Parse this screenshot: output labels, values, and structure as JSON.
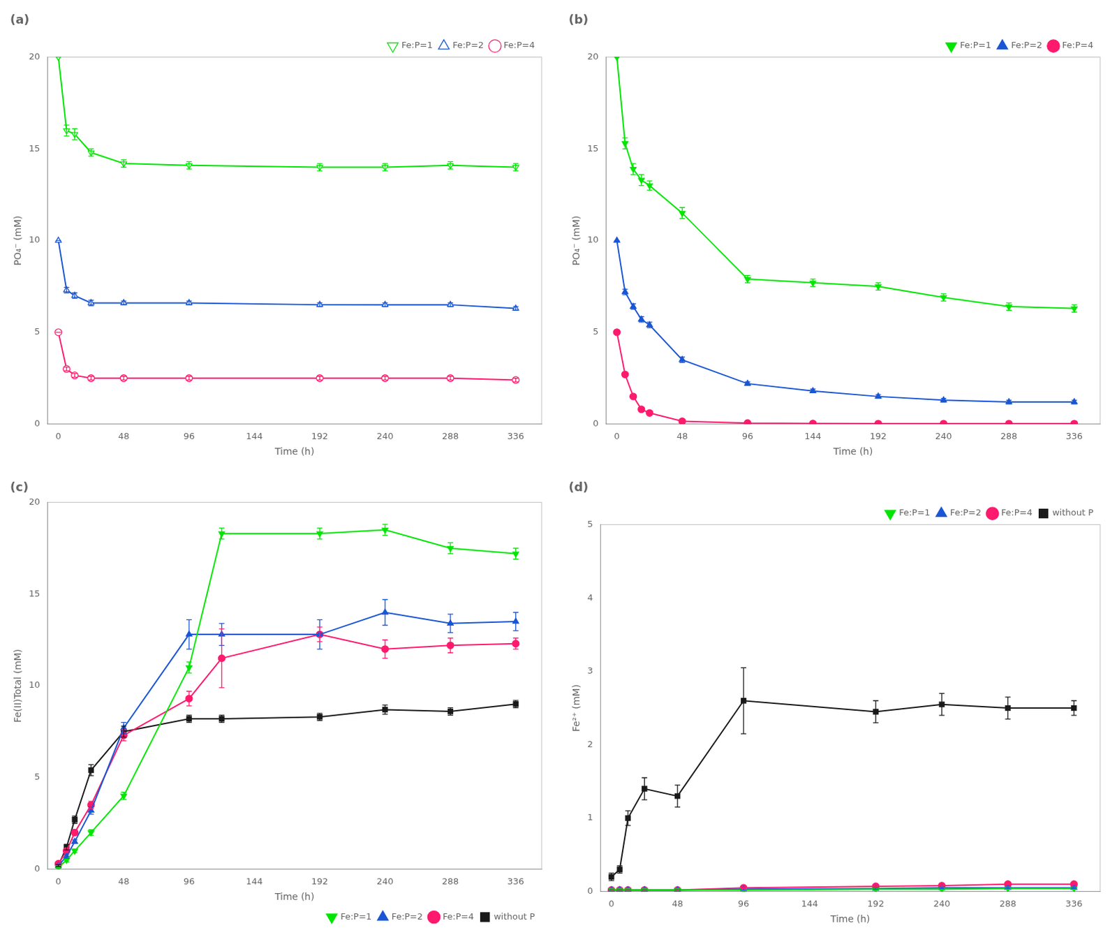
{
  "chart_data": [
    {
      "type": "line",
      "title": "(a)",
      "xlabel": "Time (h)",
      "ylabel": "PO₄⁻ (mM)",
      "x": [
        0,
        6,
        12,
        24,
        48,
        96,
        192,
        240,
        288,
        336
      ],
      "xlim": [
        -8,
        355
      ],
      "xticks": [
        0,
        48,
        96,
        144,
        192,
        240,
        288,
        336
      ],
      "ylim": [
        0,
        20
      ],
      "yticks": [
        0,
        5,
        10,
        15,
        20
      ],
      "grid": false,
      "legend": "upper right",
      "series": [
        {
          "name": "Fe:P=1",
          "color": "#00e600",
          "marker": "triangle-down-open",
          "values": [
            20.0,
            16.0,
            15.8,
            14.8,
            14.2,
            14.1,
            14.0,
            14.0,
            14.1,
            14.0
          ],
          "errors": [
            0.0,
            0.3,
            0.3,
            0.2,
            0.2,
            0.2,
            0.2,
            0.2,
            0.2,
            0.2
          ]
        },
        {
          "name": "Fe:P=2",
          "color": "#1a56d4",
          "marker": "triangle-up-open",
          "values": [
            10.0,
            7.3,
            7.0,
            6.6,
            6.6,
            6.6,
            6.5,
            6.5,
            6.5,
            6.3
          ],
          "errors": [
            0.0,
            0.15,
            0.15,
            0.15,
            0.1,
            0.1,
            0.1,
            0.1,
            0.1,
            0.1
          ]
        },
        {
          "name": "Fe:P=4",
          "color": "#ff1a6e",
          "marker": "circle-open",
          "values": [
            5.0,
            3.0,
            2.65,
            2.5,
            2.5,
            2.5,
            2.5,
            2.5,
            2.5,
            2.4
          ],
          "errors": [
            0.0,
            0.1,
            0.1,
            0.1,
            0.1,
            0.1,
            0.1,
            0.1,
            0.1,
            0.1
          ]
        }
      ]
    },
    {
      "type": "line",
      "title": "(b)",
      "xlabel": "Time (h)",
      "ylabel": "PO₄⁻ (mM)",
      "x": [
        0,
        6,
        12,
        18,
        24,
        48,
        96,
        144,
        192,
        240,
        288,
        336
      ],
      "xlim": [
        -8,
        355
      ],
      "xticks": [
        0,
        48,
        96,
        144,
        192,
        240,
        288,
        336
      ],
      "ylim": [
        0,
        20
      ],
      "yticks": [
        0,
        5,
        10,
        15,
        20
      ],
      "grid": false,
      "legend": "upper right",
      "series": [
        {
          "name": "Fe:P=1",
          "color": "#00e600",
          "marker": "triangle-down",
          "values": [
            20.0,
            15.3,
            13.9,
            13.3,
            13.0,
            11.5,
            7.9,
            7.7,
            7.5,
            6.9,
            6.4,
            6.3
          ],
          "errors": [
            0.0,
            0.3,
            0.3,
            0.3,
            0.25,
            0.3,
            0.2,
            0.2,
            0.2,
            0.2,
            0.2,
            0.2
          ]
        },
        {
          "name": "Fe:P=2",
          "color": "#1a56d4",
          "marker": "triangle-up",
          "values": [
            10.0,
            7.2,
            6.4,
            5.7,
            5.4,
            3.5,
            2.2,
            1.8,
            1.5,
            1.3,
            1.2,
            1.2
          ],
          "errors": [
            0.0,
            0.15,
            0.15,
            0.15,
            0.15,
            0.15,
            0.1,
            0.1,
            0.1,
            0.1,
            0.1,
            0.1
          ]
        },
        {
          "name": "Fe:P=4",
          "color": "#ff1a6e",
          "marker": "circle",
          "values": [
            5.0,
            2.7,
            1.5,
            0.8,
            0.6,
            0.15,
            0.05,
            0.03,
            0.02,
            0.02,
            0.02,
            0.02
          ],
          "errors": [
            0.0,
            0.1,
            0.1,
            0.08,
            0.05,
            0.05,
            0.02,
            0.02,
            0.02,
            0.02,
            0.02,
            0.02
          ]
        }
      ]
    },
    {
      "type": "line",
      "title": "(c)",
      "xlabel": "Time (h)",
      "ylabel": "Fe(II)Total (mM)",
      "x": [
        0,
        6,
        12,
        24,
        48,
        96,
        120,
        192,
        240,
        288,
        336
      ],
      "xlim": [
        -8,
        355
      ],
      "xticks": [
        0,
        48,
        96,
        144,
        192,
        240,
        288,
        336
      ],
      "ylim": [
        0,
        20
      ],
      "yticks": [
        0,
        5,
        10,
        15,
        20
      ],
      "grid": false,
      "legend": "lower right",
      "series": [
        {
          "name": "Fe:P=1",
          "color": "#00e600",
          "marker": "triangle-down",
          "values": [
            0.1,
            0.5,
            1.0,
            2.0,
            4.0,
            11.0,
            18.3,
            18.3,
            18.5,
            17.5,
            17.2
          ],
          "errors": [
            0.05,
            0.1,
            0.1,
            0.15,
            0.2,
            0.3,
            0.3,
            0.3,
            0.3,
            0.3,
            0.3
          ]
        },
        {
          "name": "Fe:P=2",
          "color": "#1a56d4",
          "marker": "triangle-up",
          "values": [
            0.2,
            0.7,
            1.5,
            3.2,
            7.7,
            12.8,
            12.8,
            12.8,
            14.0,
            13.4,
            13.5
          ],
          "errors": [
            0.05,
            0.1,
            0.1,
            0.2,
            0.3,
            0.8,
            0.6,
            0.8,
            0.7,
            0.5,
            0.5
          ]
        },
        {
          "name": "Fe:P=4",
          "color": "#ff1a6e",
          "marker": "circle",
          "values": [
            0.3,
            1.0,
            2.0,
            3.5,
            7.3,
            9.3,
            11.5,
            12.8,
            12.0,
            12.2,
            12.3
          ],
          "errors": [
            0.05,
            0.1,
            0.15,
            0.2,
            0.3,
            0.4,
            1.6,
            0.4,
            0.5,
            0.4,
            0.3
          ]
        },
        {
          "name": "without P",
          "color": "#1a1a1a",
          "marker": "square",
          "values": [
            0.2,
            1.2,
            2.7,
            5.4,
            7.5,
            8.2,
            8.2,
            8.3,
            8.7,
            8.6,
            9.0
          ],
          "errors": [
            0.05,
            0.15,
            0.2,
            0.3,
            0.3,
            0.2,
            0.2,
            0.2,
            0.25,
            0.2,
            0.2
          ]
        }
      ]
    },
    {
      "type": "line",
      "title": "(d)",
      "xlabel": "Time (h)",
      "ylabel": "Fe²⁺ (mM)",
      "x": [
        0,
        6,
        12,
        24,
        48,
        96,
        192,
        240,
        288,
        336
      ],
      "xlim": [
        -8,
        355
      ],
      "xticks": [
        0,
        48,
        96,
        144,
        192,
        240,
        288,
        336
      ],
      "ylim": [
        0,
        5
      ],
      "yticks": [
        0,
        1,
        2,
        3,
        4,
        5
      ],
      "grid": false,
      "legend": "upper right",
      "series": [
        {
          "name": "Fe:P=1",
          "color": "#00e600",
          "marker": "triangle-down",
          "values": [
            0.02,
            0.02,
            0.02,
            0.02,
            0.02,
            0.02,
            0.03,
            0.03,
            0.04,
            0.04
          ],
          "errors": [
            0.01,
            0.01,
            0.01,
            0.01,
            0.01,
            0.01,
            0.01,
            0.01,
            0.01,
            0.01
          ]
        },
        {
          "name": "Fe:P=2",
          "color": "#1a56d4",
          "marker": "triangle-up",
          "values": [
            0.02,
            0.02,
            0.02,
            0.02,
            0.02,
            0.03,
            0.04,
            0.05,
            0.05,
            0.05
          ],
          "errors": [
            0.01,
            0.01,
            0.01,
            0.01,
            0.01,
            0.01,
            0.01,
            0.01,
            0.01,
            0.01
          ]
        },
        {
          "name": "Fe:P=4",
          "color": "#ff1a6e",
          "marker": "circle",
          "values": [
            0.02,
            0.02,
            0.02,
            0.02,
            0.02,
            0.05,
            0.07,
            0.08,
            0.1,
            0.1
          ],
          "errors": [
            0.01,
            0.01,
            0.01,
            0.01,
            0.01,
            0.01,
            0.01,
            0.01,
            0.01,
            0.01
          ]
        },
        {
          "name": "without P",
          "color": "#1a1a1a",
          "marker": "square",
          "values": [
            0.2,
            0.3,
            1.0,
            1.4,
            1.3,
            2.6,
            2.45,
            2.55,
            2.5,
            2.5
          ],
          "errors": [
            0.05,
            0.05,
            0.1,
            0.15,
            0.15,
            0.45,
            0.15,
            0.15,
            0.15,
            0.1
          ]
        }
      ]
    }
  ]
}
